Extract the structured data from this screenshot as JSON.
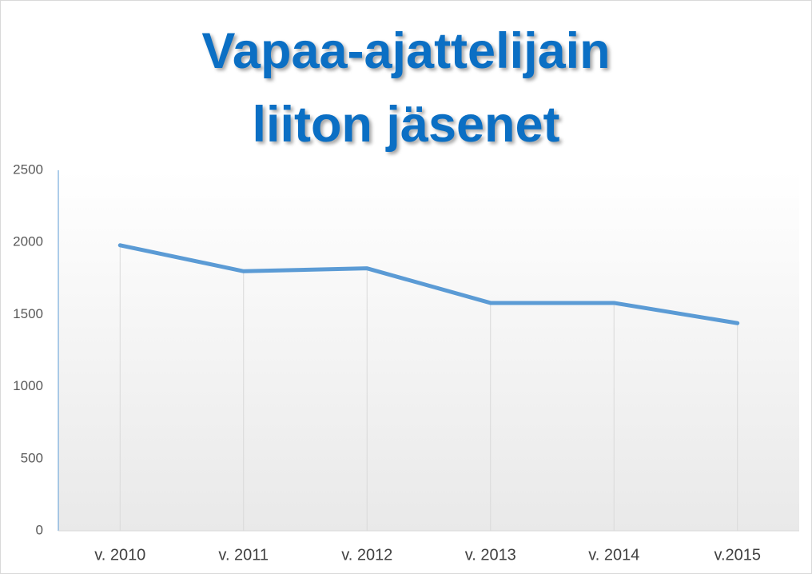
{
  "chart_data": {
    "type": "line",
    "title": "Vapaa-ajattelijain liiton jäsenet",
    "categories": [
      "v. 2010",
      "v. 2011",
      "v. 2012",
      "v. 2013",
      "v. 2014",
      "v.2015"
    ],
    "values": [
      1980,
      1800,
      1820,
      1580,
      1580,
      1440
    ],
    "color": "#5b9bd5",
    "ylim": [
      0,
      2500
    ],
    "yticks": [
      0,
      500,
      1000,
      1500,
      2000,
      2500
    ],
    "drop_lines": true
  }
}
